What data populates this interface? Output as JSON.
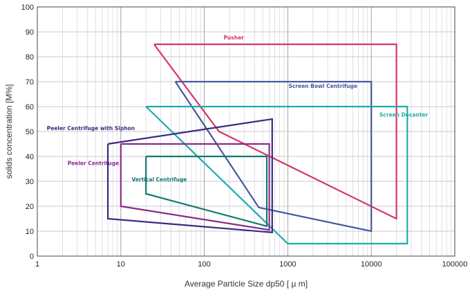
{
  "chart_data": {
    "type": "area",
    "title": "",
    "xlabel": "Average Particle Size dp50 [ μ m]",
    "ylabel": "solids concentration [M%]",
    "xscale": "log",
    "xlim": [
      1,
      100000
    ],
    "ylim": [
      0,
      100
    ],
    "grid": true,
    "x_ticks": [
      1,
      10,
      100,
      1000,
      10000,
      100000
    ],
    "x_tick_labels": [
      "1",
      "10",
      "100",
      "1000",
      "10000",
      "100000"
    ],
    "y_ticks": [
      0,
      10,
      20,
      30,
      40,
      50,
      60,
      70,
      80,
      90,
      100
    ],
    "y_tick_labels": [
      "0",
      "10",
      "20",
      "30",
      "40",
      "50",
      "60",
      "70",
      "80",
      "90",
      "100"
    ],
    "series": [
      {
        "name": "Pusher",
        "color": "#d6336c",
        "label_at": [
          170,
          87
        ],
        "points": [
          [
            25,
            85
          ],
          [
            20000,
            85
          ],
          [
            20000,
            15
          ],
          [
            150,
            50
          ],
          [
            25,
            85
          ]
        ]
      },
      {
        "name": "Screen Bowl Centrifuge",
        "color": "#4657a0",
        "label_at": [
          1020,
          67.5
        ],
        "points": [
          [
            45,
            70
          ],
          [
            10000,
            70
          ],
          [
            10000,
            10
          ],
          [
            450,
            19.5
          ],
          [
            45,
            70
          ]
        ]
      },
      {
        "name": "Screen Decanter",
        "color": "#1faaa9",
        "label_at": [
          12500,
          56
        ],
        "points": [
          [
            20,
            60
          ],
          [
            27000,
            60
          ],
          [
            27000,
            5
          ],
          [
            1000,
            5
          ],
          [
            20,
            60
          ]
        ]
      },
      {
        "name": "Peeler Centrifuge with Siphon",
        "color": "#3b2a7d",
        "label_at": [
          1.3,
          50.5
        ],
        "points": [
          [
            7,
            45
          ],
          [
            650,
            55
          ],
          [
            650,
            9.5
          ],
          [
            7,
            15
          ],
          [
            7,
            45
          ]
        ]
      },
      {
        "name": "Peeler Centrifuge",
        "color": "#8a2a8a",
        "label_at": [
          2.3,
          36.5
        ],
        "points": [
          [
            10,
            45
          ],
          [
            600,
            45
          ],
          [
            600,
            10.5
          ],
          [
            10,
            20
          ],
          [
            10,
            45
          ]
        ]
      },
      {
        "name": "Vertical Centrifuge",
        "color": "#127a6c",
        "label_at": [
          13.5,
          30
        ],
        "points": [
          [
            20,
            40
          ],
          [
            560,
            40
          ],
          [
            560,
            12
          ],
          [
            20,
            25
          ],
          [
            20,
            40
          ]
        ]
      }
    ]
  }
}
